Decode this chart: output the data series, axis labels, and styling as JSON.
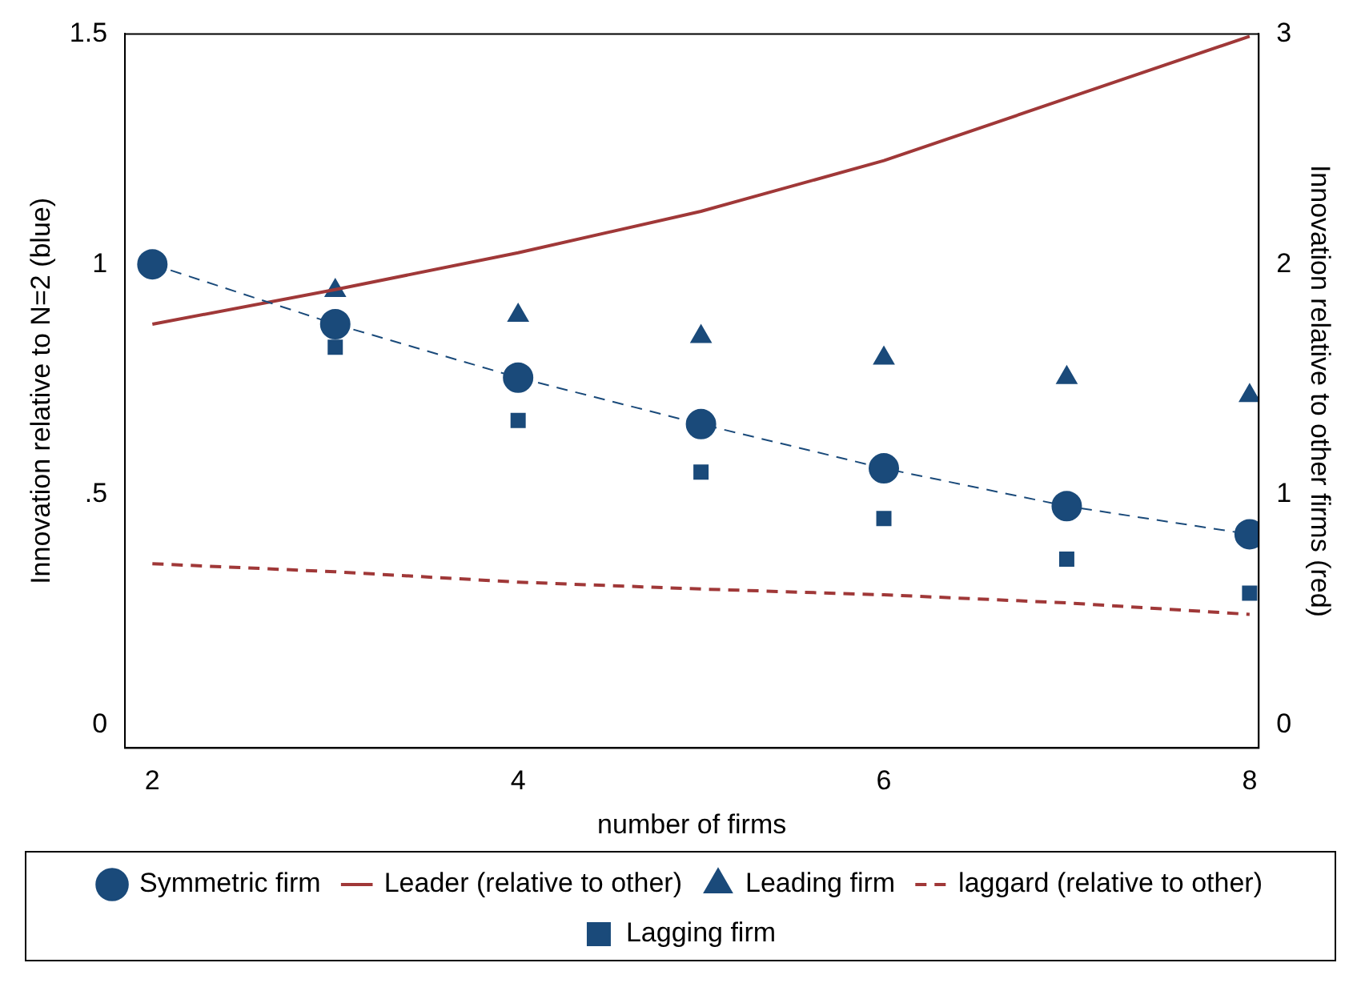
{
  "chart_data": {
    "type": "line",
    "xlabel": "number of firms",
    "ylabel": "Innovation relative to N=2 (blue)",
    "y2label": "Innovation relative to other firms (red)",
    "x": [
      2,
      3,
      4,
      5,
      6,
      7,
      8
    ],
    "xlim": [
      1.85,
      8.05
    ],
    "xticks": [
      2,
      4,
      6,
      8
    ],
    "ylim": [
      -0.05,
      1.5
    ],
    "yticks": [
      0,
      {
        "value": 0.5,
        "label": ".5"
      },
      1,
      1.5
    ],
    "y2lim": [
      -0.1,
      3
    ],
    "y2ticks": [
      0,
      1,
      2,
      3
    ],
    "grid": false,
    "legend": "bottom",
    "series": [
      {
        "name": "Symmetric firm",
        "color": "#1a4a7a",
        "marker": "circle",
        "line_style": "dashed",
        "values": [
          1.0,
          0.87,
          0.754,
          0.653,
          0.557,
          0.475,
          0.414
        ]
      },
      {
        "name": "Leader (relative to other)",
        "axis": "y2",
        "color": "#a03838",
        "marker": "none",
        "line_style": "solid",
        "values": [
          1.74,
          1.89,
          2.05,
          2.23,
          2.45,
          2.72,
          2.99
        ]
      },
      {
        "name": "Leading firm",
        "type": "scatter",
        "color": "#1a4a7a",
        "marker": "triangle",
        "x": [
          3,
          4,
          5,
          6,
          7,
          8
        ],
        "values": [
          0.943,
          0.889,
          0.843,
          0.796,
          0.754,
          0.715
        ]
      },
      {
        "name": "laggard (relative to other)",
        "axis": "y2",
        "color": "#a03838",
        "marker": "none",
        "line_style": "dashed",
        "values": [
          0.7,
          0.665,
          0.62,
          0.59,
          0.565,
          0.53,
          0.48
        ]
      },
      {
        "name": "Lagging firm",
        "type": "scatter",
        "color": "#1a4a7a",
        "marker": "square",
        "x": [
          3,
          4,
          5,
          6,
          7,
          8
        ],
        "values": [
          0.82,
          0.661,
          0.549,
          0.448,
          0.36,
          0.286
        ]
      }
    ]
  }
}
